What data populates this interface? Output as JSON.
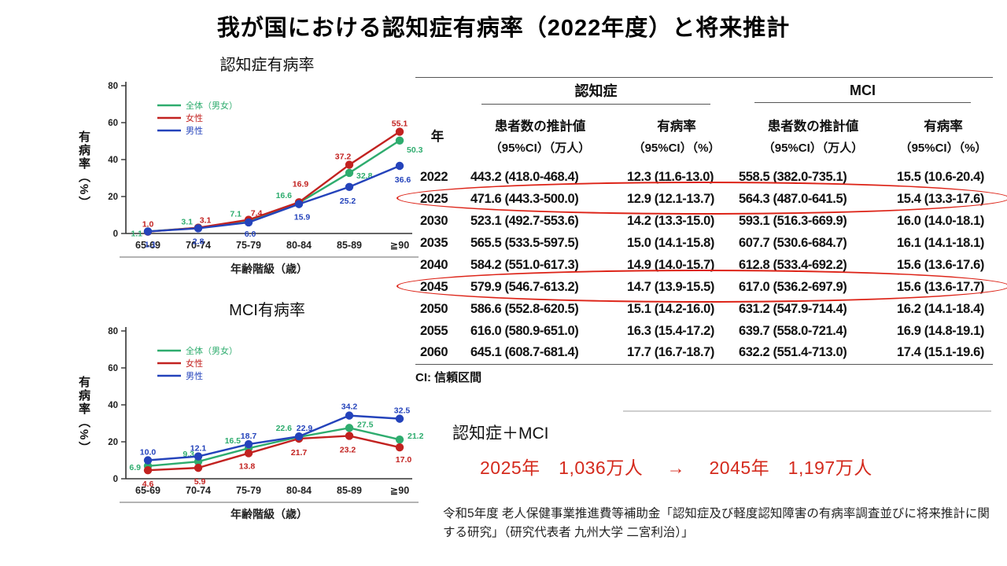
{
  "title": "我が国における認知症有病率（2022年度）と将来推計",
  "colors": {
    "overall_green": "#2eac6e",
    "female_red": "#c22220",
    "male_blue": "#2443bb",
    "highlight_red": "#dd2418",
    "stat_red": "#d42a1d"
  },
  "chart_data": [
    {
      "type": "line",
      "title": "認知症有病率",
      "ylabel": "有病率（%）",
      "xlabel": "年齢階級（歳）",
      "ylim": [
        0,
        80
      ],
      "yticks": [
        0,
        20,
        40,
        60,
        80
      ],
      "grid": false,
      "legend_position": "top-left",
      "categories": [
        "65-69",
        "70-74",
        "75-79",
        "80-84",
        "85-89",
        "≧90"
      ],
      "series": [
        {
          "name": "全体（男女）",
          "color": "#2eac6e",
          "values": [
            1.1,
            3.1,
            7.1,
            16.6,
            32.8,
            50.3
          ],
          "labels": [
            "1.1",
            "3.1",
            "7.1",
            "16.6",
            "32.8",
            "50.3"
          ],
          "label_offsets": [
            [
              -7,
              3,
              "end"
            ],
            [
              -7,
              -7,
              "end"
            ],
            [
              -9,
              -8,
              "end"
            ],
            [
              -9,
              -9,
              "end"
            ],
            [
              9,
              4,
              "start"
            ],
            [
              9,
              12,
              "start"
            ]
          ]
        },
        {
          "name": "女性",
          "color": "#c22220",
          "values": [
            1.0,
            3.1,
            7.4,
            16.9,
            37.2,
            55.1
          ],
          "labels": [
            "1.0",
            "3.1",
            "7.4",
            "16.9",
            "37.2",
            "55.1"
          ],
          "label_offsets": [
            [
              0,
              -9,
              "middle"
            ],
            [
              9,
              -9,
              "middle"
            ],
            [
              10,
              -8,
              "middle"
            ],
            [
              2,
              -23,
              "middle"
            ],
            [
              -8,
              -10,
              "middle"
            ],
            [
              0,
              -10,
              "middle"
            ]
          ]
        },
        {
          "name": "男性",
          "color": "#2443bb",
          "values": [
            1.1,
            2.8,
            6.0,
            15.9,
            25.2,
            36.6
          ],
          "labels": [
            "1.1",
            "2.8",
            "6.0",
            "15.9",
            "25.2",
            "36.6"
          ],
          "label_offsets": [
            [
              3,
              17,
              "middle"
            ],
            [
              0,
              17,
              "middle"
            ],
            [
              2,
              15,
              "middle"
            ],
            [
              4,
              17,
              "middle"
            ],
            [
              -2,
              18,
              "middle"
            ],
            [
              4,
              18,
              "middle"
            ]
          ]
        }
      ]
    },
    {
      "type": "line",
      "title": "MCI有病率",
      "ylabel": "有病率（%）",
      "xlabel": "年齢階級（歳）",
      "ylim": [
        0,
        80
      ],
      "yticks": [
        0,
        20,
        40,
        60,
        80
      ],
      "grid": false,
      "legend_position": "top-left",
      "categories": [
        "65-69",
        "70-74",
        "75-79",
        "80-84",
        "85-89",
        "≧90"
      ],
      "series": [
        {
          "name": "全体（男女）",
          "color": "#2eac6e",
          "values": [
            6.9,
            9.3,
            16.5,
            22.6,
            27.5,
            21.2
          ],
          "labels": [
            "6.9",
            "9.3",
            "16.5",
            "22.6",
            "27.5",
            "21.2"
          ],
          "label_offsets": [
            [
              -9,
              2,
              "end"
            ],
            [
              -5,
              -9,
              "end"
            ],
            [
              -10,
              -9,
              "end"
            ],
            [
              -9,
              -11,
              "end"
            ],
            [
              10,
              -4,
              "start"
            ],
            [
              10,
              -4,
              "start"
            ]
          ]
        },
        {
          "name": "女性",
          "color": "#c22220",
          "values": [
            4.6,
            5.9,
            13.8,
            21.7,
            23.2,
            17.0
          ],
          "labels": [
            "4.6",
            "5.9",
            "13.8",
            "21.7",
            "23.2",
            "17.0"
          ],
          "label_offsets": [
            [
              0,
              18,
              "middle"
            ],
            [
              2,
              18,
              "middle"
            ],
            [
              -2,
              17,
              "middle"
            ],
            [
              0,
              18,
              "middle"
            ],
            [
              -2,
              18,
              "middle"
            ],
            [
              5,
              16,
              "middle"
            ]
          ]
        },
        {
          "name": "男性",
          "color": "#2443bb",
          "values": [
            10.0,
            12.1,
            18.7,
            22.9,
            34.2,
            32.5
          ],
          "labels": [
            "10.0",
            "12.1",
            "18.7",
            "22.9",
            "34.2",
            "32.5"
          ],
          "label_offsets": [
            [
              0,
              -10,
              "middle"
            ],
            [
              0,
              -10,
              "middle"
            ],
            [
              0,
              -10,
              "middle"
            ],
            [
              7,
              -10,
              "middle"
            ],
            [
              0,
              -11,
              "middle"
            ],
            [
              3,
              -10,
              "middle"
            ]
          ]
        }
      ]
    }
  ],
  "table": {
    "group_headers": [
      "認知症",
      "MCI"
    ],
    "col_year": "年",
    "col_patients": "患者数の推計値",
    "col_patients_sub": "（95%CI）（万人）",
    "col_prevalence": "有病率",
    "col_prevalence_sub": "（95%CI）（%）",
    "rows": [
      [
        "2022",
        "443.2 (418.0-468.4)",
        "12.3 (11.6-13.0)",
        "558.5 (382.0-735.1)",
        "15.5 (10.6-20.4)"
      ],
      [
        "2025",
        "471.6 (443.3-500.0)",
        "12.9 (12.1-13.7)",
        "564.3 (487.0-641.5)",
        "15.4 (13.3-17.6)"
      ],
      [
        "2030",
        "523.1 (492.7-553.6)",
        "14.2 (13.3-15.0)",
        "593.1 (516.3-669.9)",
        "16.0 (14.0-18.1)"
      ],
      [
        "2035",
        "565.5 (533.5-597.5)",
        "15.0 (14.1-15.8)",
        "607.7 (530.6-684.7)",
        "16.1 (14.1-18.1)"
      ],
      [
        "2040",
        "584.2 (551.0-617.3)",
        "14.9 (14.0-15.7)",
        "612.8 (533.4-692.2)",
        "15.6 (13.6-17.6)"
      ],
      [
        "2045",
        "579.9 (546.7-613.2)",
        "14.7 (13.9-15.5)",
        "617.0 (536.2-697.9)",
        "15.6 (13.6-17.7)"
      ],
      [
        "2050",
        "586.6 (552.8-620.5)",
        "15.1 (14.2-16.0)",
        "631.2 (547.9-714.4)",
        "16.2 (14.1-18.4)"
      ],
      [
        "2055",
        "616.0 (580.9-651.0)",
        "16.3 (15.4-17.2)",
        "639.7 (558.0-721.4)",
        "16.9 (14.8-19.1)"
      ],
      [
        "2060",
        "645.1 (608.7-681.4)",
        "17.7 (16.7-18.7)",
        "632.2 (551.4-713.0)",
        "17.4 (15.1-19.6)"
      ]
    ],
    "highlighted_years": [
      "2025",
      "2045"
    ],
    "footnote": "CI: 信頼区間"
  },
  "summary": {
    "label": "認知症＋MCI",
    "stat": "2025年　1,036万人　 →　 2045年　1,197万人"
  },
  "source": "令和5年度 老人保健事業推進費等補助金「認知症及び軽度認知障害の有病率調査並びに将来推計に関する研究」（研究代表者 九州大学 二宮利治）」"
}
